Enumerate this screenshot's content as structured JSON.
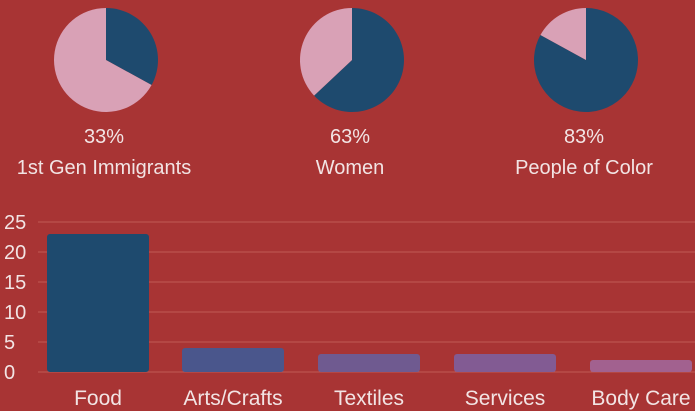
{
  "colors": {
    "background": "#a83434",
    "pie_main": "#1e4a6e",
    "pie_rest": "#d9a1b6",
    "grid": "#bf5a55",
    "text": "#f2e4e4",
    "bars": [
      "#1e4a6e",
      "#4a568c",
      "#6f5a90",
      "#825b93",
      "#a2618f"
    ]
  },
  "chart_data": [
    {
      "type": "pie",
      "slices": [
        {
          "label": "1st Gen Immigrants",
          "display": "33%",
          "value": 33,
          "color": "#1e4a6e"
        },
        {
          "label": "",
          "value": 67,
          "color": "#d9a1b6"
        }
      ]
    },
    {
      "type": "pie",
      "slices": [
        {
          "label": "Women",
          "display": "63%",
          "value": 63,
          "color": "#1e4a6e"
        },
        {
          "label": "",
          "value": 37,
          "color": "#d9a1b6"
        }
      ]
    },
    {
      "type": "pie",
      "slices": [
        {
          "label": "People of Color",
          "display": "83%",
          "value": 83,
          "color": "#1e4a6e"
        },
        {
          "label": "",
          "value": 17,
          "color": "#d9a1b6"
        }
      ]
    },
    {
      "type": "bar",
      "categories": [
        "Food",
        "Arts/Crafts",
        "Textiles",
        "Services",
        "Body Care"
      ],
      "values": [
        23,
        4,
        3,
        3,
        2
      ],
      "yticks": [
        0,
        5,
        10,
        15,
        20,
        25
      ],
      "ylim": [
        0,
        25
      ],
      "grid": true
    }
  ]
}
